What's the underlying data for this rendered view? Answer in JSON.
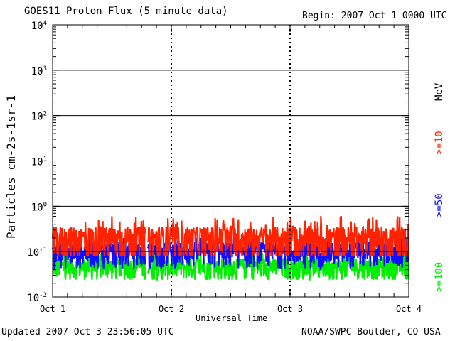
{
  "header": {
    "title": "GOES11 Proton Flux (5 minute data)",
    "begin": "Begin: 2007 Oct 1 0000 UTC"
  },
  "footer": {
    "updated": "Updated 2007 Oct  3 23:56:05 UTC",
    "credit": "NOAA/SWPC Boulder, CO USA"
  },
  "side_labels": {
    "unit": "MeV",
    "ge10": ">=10",
    "ge50": ">=50",
    "ge100": ">=100"
  },
  "colors": {
    "ge10": "#ff2200",
    "ge50": "#1010ff",
    "ge100": "#00ee00",
    "axis": "#000000"
  },
  "chart_data": {
    "type": "line",
    "title": "GOES11 Proton Flux (5 minute data)",
    "xlabel": "Universal Time",
    "ylabel": "Particles cm-2s-1sr-1",
    "yscale": "log",
    "ylim": [
      0.01,
      10000
    ],
    "xlim": [
      0,
      3
    ],
    "x_tick_labels": [
      "Oct 1",
      "Oct 2",
      "Oct 3",
      "Oct 4"
    ],
    "y_tick_labels": [
      "10-2",
      "10-1",
      "100",
      "101",
      "102",
      "103",
      "104"
    ],
    "thresholds": [
      {
        "value": 1,
        "style": "solid"
      },
      {
        "value": 10,
        "style": "dashed"
      },
      {
        "value": 100,
        "style": "solid"
      },
      {
        "value": 1000,
        "style": "solid"
      }
    ],
    "gaps": [
      [
        0.78,
        0.8
      ]
    ],
    "series": [
      {
        "name": ">=10 MeV",
        "color": "#ff2200",
        "base": 0.18,
        "spread": 0.16,
        "max": 0.75
      },
      {
        "name": ">=50 MeV",
        "color": "#1010ff",
        "base": 0.095,
        "spread": 0.06,
        "max": 0.2
      },
      {
        "name": ">=100 MeV",
        "color": "#00ee00",
        "base": 0.045,
        "spread": 0.025,
        "max": 0.09,
        "min": 0.024
      }
    ]
  }
}
